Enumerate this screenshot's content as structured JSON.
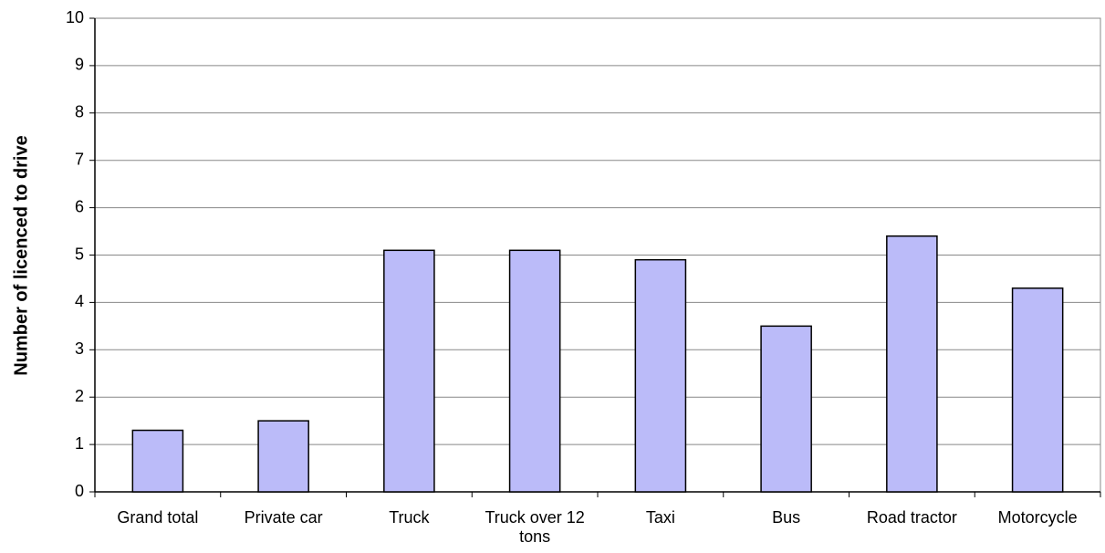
{
  "chart_data": {
    "type": "bar",
    "y_label": "Number of licenced to drive",
    "categories": [
      "Grand total",
      "Private car",
      "Truck",
      "Truck over 12 tons",
      "Taxi",
      "Bus",
      "Road tractor",
      "Motorcycle"
    ],
    "values": [
      1.3,
      1.5,
      5.1,
      5.1,
      4.9,
      3.5,
      5.4,
      4.3
    ],
    "color": "#bbbbf9",
    "ylim": [
      0,
      10
    ],
    "yticks": [
      0,
      1,
      2,
      3,
      4,
      5,
      6,
      7,
      8,
      9,
      10
    ],
    "grid": true
  }
}
